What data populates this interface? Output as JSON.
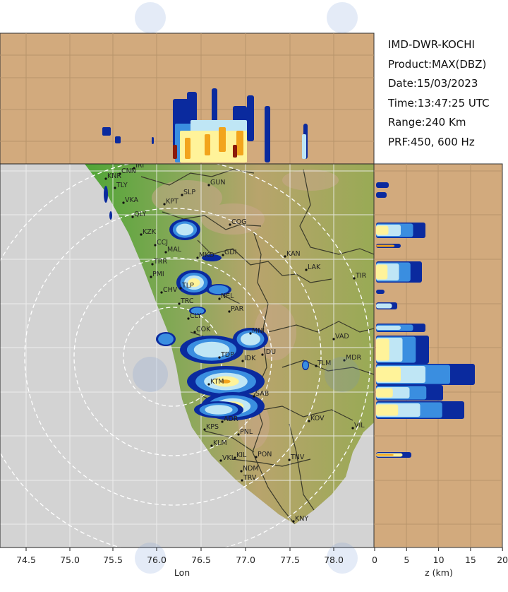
{
  "info": {
    "station": "IMD-DWR-KOCHI",
    "product": "Product:MAX(DBZ)",
    "date": "Date:15/03/2023",
    "time": "Time:13:47:25 UTC",
    "range": "Range:240 Km",
    "prf": "PRF:450, 600 Hz"
  },
  "map": {
    "x_axis_label": "Lon",
    "x_ticks": [
      "74.5",
      "75.0",
      "75.5",
      "76.0",
      "76.5",
      "77.0",
      "77.5",
      "78.0"
    ],
    "cities": [
      "KNR",
      "CNN",
      "IRI",
      "TLY",
      "VKA",
      "QLY",
      "KPT",
      "SLP",
      "GUN",
      "KZK",
      "CCJ",
      "MAL",
      "COG",
      "MKD",
      "GDI",
      "KAN",
      "LAK",
      "TIR",
      "TRR",
      "PMI",
      "TLP",
      "CHV",
      "TRC",
      "NEL",
      "PAR",
      "CLY",
      "COK",
      "MNI",
      "IDU",
      "TDP",
      "IDK",
      "VAD",
      "TLM",
      "MDR",
      "KTM",
      "SAB",
      "ADR",
      "KPS",
      "PNL",
      "KLM",
      "VKL",
      "KIL",
      "PON",
      "TNV",
      "NDM",
      "TRV",
      "KNY",
      "VIL",
      "KOV"
    ]
  },
  "side_panel": {
    "x_axis_label": "z (km)",
    "x_ticks": [
      "0",
      "5",
      "10",
      "15",
      "20"
    ]
  },
  "colors": {
    "sea": "#d3d3d3",
    "panel_bg": "#d2aa7d",
    "land_low": "#5aa83a",
    "land_high": "#b9a26a",
    "echo_weak": "#0a2a9e",
    "echo_mid": "#3a8ee0",
    "echo_light": "#bfe6f5",
    "echo_yellow": "#fff39a",
    "echo_orange": "#f2a41c",
    "echo_red": "#8b1a0a"
  }
}
